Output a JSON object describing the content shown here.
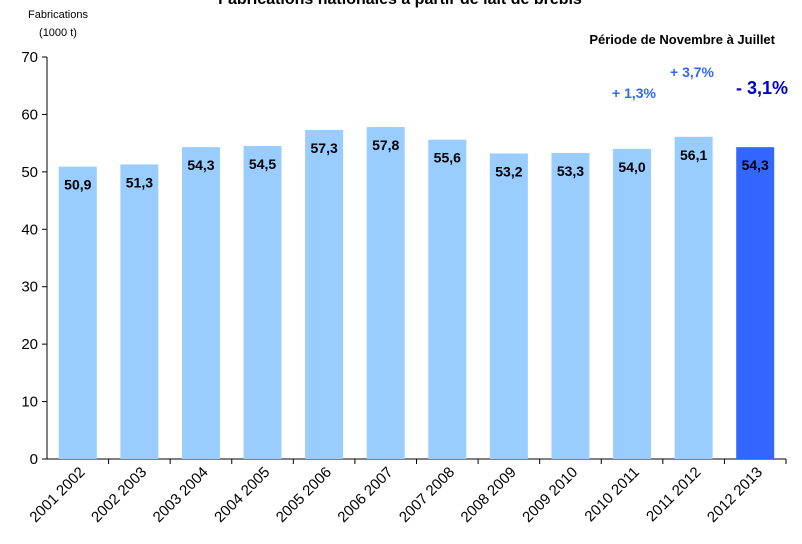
{
  "chart_data": {
    "type": "bar",
    "title": "Fabrications nationales à partir de lait de brebis",
    "subtitle": "Période de Novembre à Juillet",
    "y_label": [
      "Fabrications",
      "(1000 t)"
    ],
    "categories": [
      "2001 2002",
      "2002 2003",
      "2003 2004",
      "2004 2005",
      "2005 2006",
      "2006 2007",
      "2007 2008",
      "2008 2009",
      "2009 2010",
      "2010 2011",
      "2011 2012",
      "2012 2013"
    ],
    "values": [
      50.9,
      51.3,
      54.3,
      54.5,
      57.3,
      57.8,
      55.6,
      53.2,
      53.3,
      54.0,
      56.1,
      54.3
    ],
    "value_labels": [
      "50,9",
      "51,3",
      "54,3",
      "54,5",
      "57,3",
      "57,8",
      "55,6",
      "53,2",
      "53,3",
      "54,0",
      "56,1",
      "54,3"
    ],
    "colors": [
      "#99ccff",
      "#99ccff",
      "#99ccff",
      "#99ccff",
      "#99ccff",
      "#99ccff",
      "#99ccff",
      "#99ccff",
      "#99ccff",
      "#99ccff",
      "#99ccff",
      "#3366ff"
    ],
    "annotations": [
      "+ 1,3%",
      "+ 3,7%",
      "- 3,1%"
    ],
    "ylim": [
      0,
      70
    ],
    "yticks": [
      0,
      10,
      20,
      30,
      40,
      50,
      60,
      70
    ],
    "grid": false
  }
}
